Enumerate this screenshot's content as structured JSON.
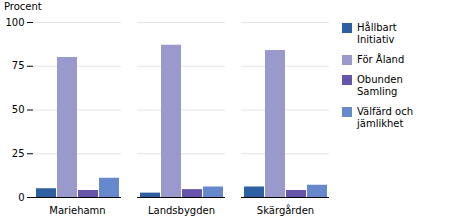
{
  "chart_data": {
    "type": "bar",
    "ylabel": "Procent",
    "categories": [
      "Mariehamn",
      "Landsbygden",
      "Skärgården"
    ],
    "series": [
      {
        "name": "Hållbart\nInitiativ",
        "values": [
          5.0,
          2.5,
          6.0
        ],
        "color": "#2E5FA3"
      },
      {
        "name": "För Åland",
        "values": [
          80.0,
          87.0,
          84.0
        ],
        "color": "#9999CC"
      },
      {
        "name": "Obunden\nSamling",
        "values": [
          4.0,
          4.5,
          4.0
        ],
        "color": "#6655AA"
      },
      {
        "name": "Välfärd och\njämlikhet",
        "values": [
          11.0,
          6.0,
          7.0
        ],
        "color": "#6688CC"
      }
    ],
    "ylim": [
      0,
      100
    ],
    "yticks": [
      0,
      25,
      50,
      75,
      100
    ],
    "grid": true,
    "legend": "right"
  }
}
